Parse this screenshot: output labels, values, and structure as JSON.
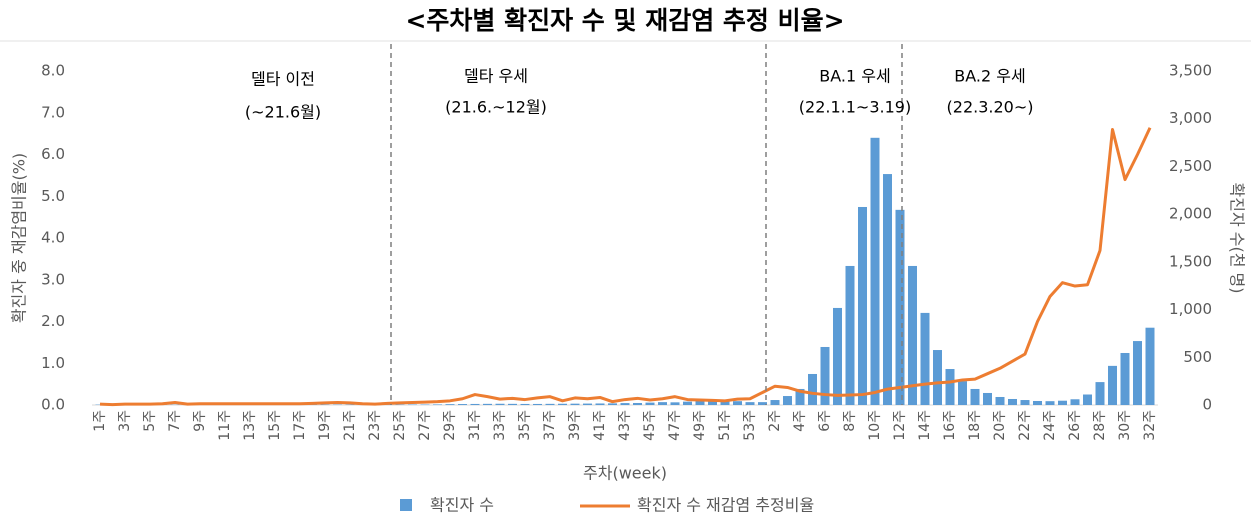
{
  "chart_data": {
    "type": "bar_line",
    "title": "<주차별 확진자 수 및 재감염 추정 비율>",
    "x_label": "주차(week)",
    "y_label": "확진자 중 재감염비율(%)",
    "y2_label": "확진자 수(천 명)",
    "annotations": [
      "델타 이전",
      "(~21.6월)",
      "델타 우세",
      "(21.6.~12월)",
      "BA.1 우세",
      "(22.1.1~3.19)",
      "BA.2 우세",
      "(22.3.20~)"
    ],
    "categories": [
      "1주",
      null,
      "3주",
      null,
      "5주",
      null,
      "7주",
      null,
      "9주",
      null,
      "11주",
      null,
      "13주",
      null,
      "15주",
      null,
      "17주",
      null,
      "19주",
      null,
      "21주",
      null,
      "23주",
      null,
      "25주",
      null,
      "27주",
      null,
      "29주",
      null,
      "31주",
      null,
      "33주",
      null,
      "35주",
      null,
      "37주",
      null,
      "39주",
      null,
      "41주",
      null,
      "43주",
      null,
      "45주",
      null,
      "47주",
      null,
      "49주",
      null,
      "51주",
      null,
      "53주",
      null,
      "2주",
      null,
      "4주",
      null,
      "6주",
      null,
      "8주",
      null,
      "10주",
      null,
      "12주",
      null,
      "14주",
      null,
      "16주",
      null,
      "18주",
      null,
      "20주",
      null,
      "22주",
      null,
      "24주",
      null,
      "26주",
      null,
      "28주",
      null,
      "30주",
      null,
      "32주"
    ],
    "series": [
      {
        "name": "확진자 수",
        "type": "bar",
        "axis": "y2",
        "color": "#5b9bd5",
        "values": [
          4,
          3,
          3,
          3,
          3,
          3,
          3,
          3,
          3,
          3,
          3,
          3,
          3,
          3,
          4,
          4,
          4,
          4,
          4,
          4,
          4,
          4,
          4,
          4,
          4,
          5,
          5,
          6,
          9,
          10,
          11,
          12,
          13,
          12,
          11,
          11,
          12,
          13,
          14,
          15,
          16,
          17,
          20,
          21,
          25,
          30,
          28,
          35,
          42,
          46,
          45,
          40,
          30,
          30,
          52,
          94,
          168,
          325,
          608,
          1017,
          1457,
          2075,
          2800,
          2420,
          2045,
          1457,
          965,
          576,
          377,
          250,
          168,
          126,
          84,
          63,
          52,
          42,
          40,
          45,
          60,
          110,
          240,
          410,
          545,
          670,
          810
        ]
      },
      {
        "name": "확진자 수 재감염 추정비율",
        "type": "line",
        "axis": "y",
        "color": "#ed7d31",
        "values": [
          0.02,
          0.01,
          0.02,
          0.02,
          0.02,
          0.03,
          0.06,
          0.02,
          0.03,
          0.03,
          0.03,
          0.03,
          0.03,
          0.03,
          0.03,
          0.03,
          0.03,
          0.04,
          0.05,
          0.06,
          0.05,
          0.03,
          0.02,
          0.04,
          0.05,
          0.06,
          0.07,
          0.08,
          0.1,
          0.15,
          0.25,
          0.2,
          0.14,
          0.16,
          0.13,
          0.17,
          0.2,
          0.1,
          0.17,
          0.15,
          0.18,
          0.08,
          0.13,
          0.16,
          0.12,
          0.15,
          0.2,
          0.13,
          0.12,
          0.11,
          0.1,
          0.14,
          0.15,
          0.3,
          0.45,
          0.42,
          0.33,
          0.28,
          0.25,
          0.23,
          0.24,
          0.25,
          0.3,
          0.38,
          0.42,
          0.46,
          0.5,
          0.53,
          0.55,
          0.6,
          0.62,
          0.75,
          0.88,
          1.05,
          1.22,
          2.0,
          2.6,
          2.93,
          2.85,
          2.88,
          3.7,
          6.6,
          5.4,
          6.0,
          6.64
        ]
      }
    ],
    "ylim": [
      0,
      8
    ],
    "yticks": [
      {
        "value": 0,
        "label": "0.0"
      },
      {
        "value": 1,
        "label": "1.0"
      },
      {
        "value": 2,
        "label": "2.0"
      },
      {
        "value": 3,
        "label": "3.0"
      },
      {
        "value": 4,
        "label": "4.0"
      },
      {
        "value": 5,
        "label": "5.0"
      },
      {
        "value": 6,
        "label": "6.0"
      },
      {
        "value": 7,
        "label": "7.0"
      },
      {
        "value": 8,
        "label": "8.0"
      }
    ],
    "y2lim": [
      0,
      3500
    ],
    "y2ticks": [
      0,
      500,
      {
        "value": 1000,
        "label": "1,000"
      },
      {
        "value": 1500,
        "label": "1,500"
      },
      {
        "value": 2000,
        "label": "2,000"
      },
      {
        "value": 2500,
        "label": "2,500"
      },
      {
        "value": 3000,
        "label": "3,000"
      },
      {
        "value": 3500,
        "label": "3,500"
      }
    ],
    "legend": "bottom"
  }
}
